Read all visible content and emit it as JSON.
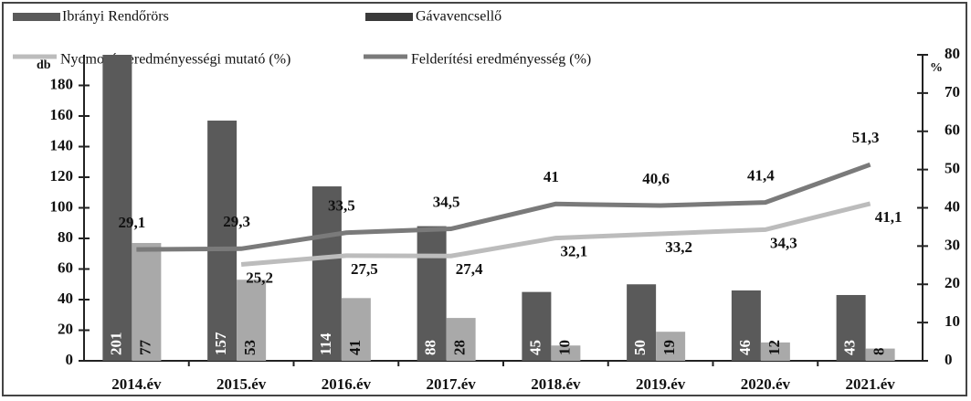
{
  "chart_data": {
    "type": "bar",
    "categories": [
      "2014.év",
      "2015.év",
      "2016.év",
      "2017.év",
      "2018.év",
      "2019.év",
      "2020.év",
      "2021.év"
    ],
    "series": [
      {
        "name": "Ibrányi Rendőrörs",
        "type": "bar",
        "color": "#5a5a5a",
        "values": [
          201,
          157,
          114,
          88,
          45,
          50,
          46,
          43
        ]
      },
      {
        "name": "Gávavencsellő",
        "type": "bar",
        "color": "#a9a9a9",
        "values": [
          77,
          53,
          41,
          28,
          10,
          19,
          12,
          8
        ]
      },
      {
        "name": "Nyomozás-eredményességi mutató (%)",
        "type": "line",
        "axis": "y2",
        "color": "#bcbcbc",
        "values": [
          null,
          25.2,
          27.5,
          27.4,
          32.1,
          33.2,
          34.3,
          41.1
        ],
        "value_labels": [
          null,
          "25,2",
          "27,5",
          "27,4",
          "32,1",
          "33,2",
          "34,3",
          "41,1"
        ]
      },
      {
        "name": "Felderítési eredményesség (%)",
        "type": "line",
        "axis": "y2",
        "color": "#7a7a7a",
        "values": [
          29.1,
          29.3,
          33.5,
          34.5,
          41,
          40.6,
          41.4,
          51.3
        ],
        "value_labels": [
          "29,1",
          "29,3",
          "33,5",
          "34,5",
          "41",
          "40,6",
          "41,4",
          "51,3"
        ]
      }
    ],
    "y_label": "db",
    "y2_label": "%",
    "ylim": [
      0,
      200
    ],
    "yticks": [
      0,
      20,
      40,
      60,
      80,
      100,
      120,
      140,
      160,
      180
    ],
    "y2lim": [
      0,
      80
    ],
    "y2ticks": [
      0,
      10,
      20,
      30,
      40,
      50,
      60,
      70,
      80
    ]
  }
}
